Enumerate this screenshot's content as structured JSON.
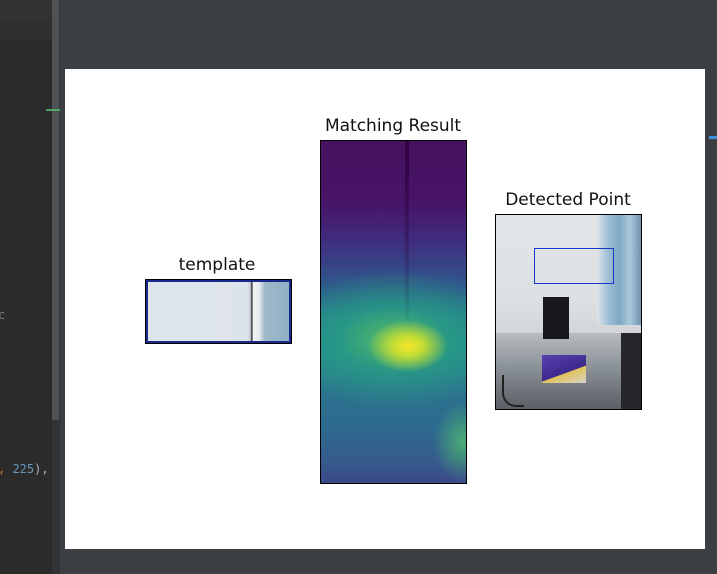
{
  "editor": {
    "code_frag_1": "c",
    "code_frag_2_prefix": ", ",
    "code_frag_2_number": "225",
    "code_frag_2_suffix": "),"
  },
  "figure": {
    "panels": [
      {
        "title": "template"
      },
      {
        "title": "Matching Result"
      },
      {
        "title": "Detected Point"
      }
    ]
  },
  "colors": {
    "editor_bg": "#2b2b2b",
    "ide_bg": "#3b3e42",
    "number": "#6897bb",
    "punct": "#cc7832",
    "detect_box": "#1737c9"
  }
}
